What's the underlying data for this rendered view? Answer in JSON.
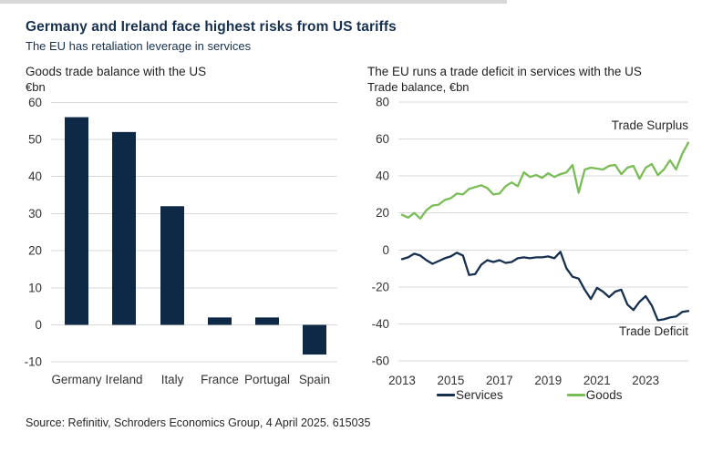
{
  "header": {
    "title": "Germany and Ireland face highest risks from US tariffs",
    "subtitle": "The EU has retaliation leverage in services"
  },
  "footer": {
    "source": "Source: Refinitiv, Schroders Economics Group, 4 April 2025. 615035"
  },
  "colors": {
    "navy": "#0e2946",
    "green": "#78bd55",
    "grid": "#d9d9d9",
    "title_navy": "#16304f",
    "tick_text": "#333333"
  },
  "chart_data": [
    {
      "id": "goods-trade-balance-bars",
      "type": "bar",
      "title": "Goods trade balance with the US",
      "unit_label": "€bn",
      "categories": [
        "Germany",
        "Ireland",
        "Italy",
        "France",
        "Portugal",
        "Spain"
      ],
      "values": [
        56,
        52,
        32,
        2,
        2,
        -8
      ],
      "yticks": [
        60,
        50,
        40,
        30,
        20,
        10,
        0,
        -10
      ],
      "ylim": [
        -10,
        60
      ],
      "bar_color": "#0e2946",
      "grid": true
    },
    {
      "id": "eu-us-services-goods-lines",
      "type": "line",
      "title": "The EU runs a trade deficit in services with the US",
      "unit_label": "Trade balance, €bn",
      "x_start": "2013-Q1",
      "x_end": "2024-Q4",
      "x_frequency": "quarterly",
      "xticks": [
        2013,
        2015,
        2017,
        2019,
        2021,
        2023
      ],
      "yticks": [
        80,
        60,
        40,
        20,
        0,
        -20,
        -40,
        -60
      ],
      "ylim": [
        -60,
        80
      ],
      "grid": true,
      "legend_position": "bottom",
      "annotations": [
        {
          "text": "Trade Surplus",
          "position": "upper-right"
        },
        {
          "text": "Trade Deficit",
          "position": "lower-right"
        }
      ],
      "series": [
        {
          "name": "Services",
          "color": "#16304f",
          "values": [
            -5,
            -4,
            -2,
            -3,
            -5.5,
            -7.5,
            -6,
            -4.5,
            -3.5,
            -1.5,
            -3,
            -13.5,
            -13,
            -8,
            -5.5,
            -6.5,
            -5.5,
            -7,
            -6.5,
            -4.5,
            -4,
            -4.5,
            -4,
            -4,
            -3.5,
            -4.5,
            -1,
            -10,
            -14.5,
            -15.5,
            -21.5,
            -26.5,
            -20.5,
            -22.5,
            -25.5,
            -22.5,
            -21.5,
            -29.5,
            -32.5,
            -28,
            -25,
            -30,
            -38,
            -37.5,
            -36.5,
            -36,
            -33.5,
            -33
          ]
        },
        {
          "name": "Goods",
          "color": "#78bd55",
          "values": [
            19,
            17.5,
            20,
            17,
            21.5,
            24,
            24.5,
            27,
            28,
            30.5,
            30,
            33,
            34,
            35,
            33.5,
            30,
            30.5,
            34.5,
            36.5,
            34.5,
            42,
            39.5,
            40.5,
            39,
            41.5,
            39.5,
            41,
            42,
            46,
            31,
            43.5,
            44.5,
            44,
            43.5,
            45.5,
            46,
            41,
            44.5,
            45.5,
            38.5,
            44.5,
            46.5,
            40.5,
            43.5,
            48.5,
            43.5,
            52,
            58
          ]
        }
      ]
    }
  ]
}
